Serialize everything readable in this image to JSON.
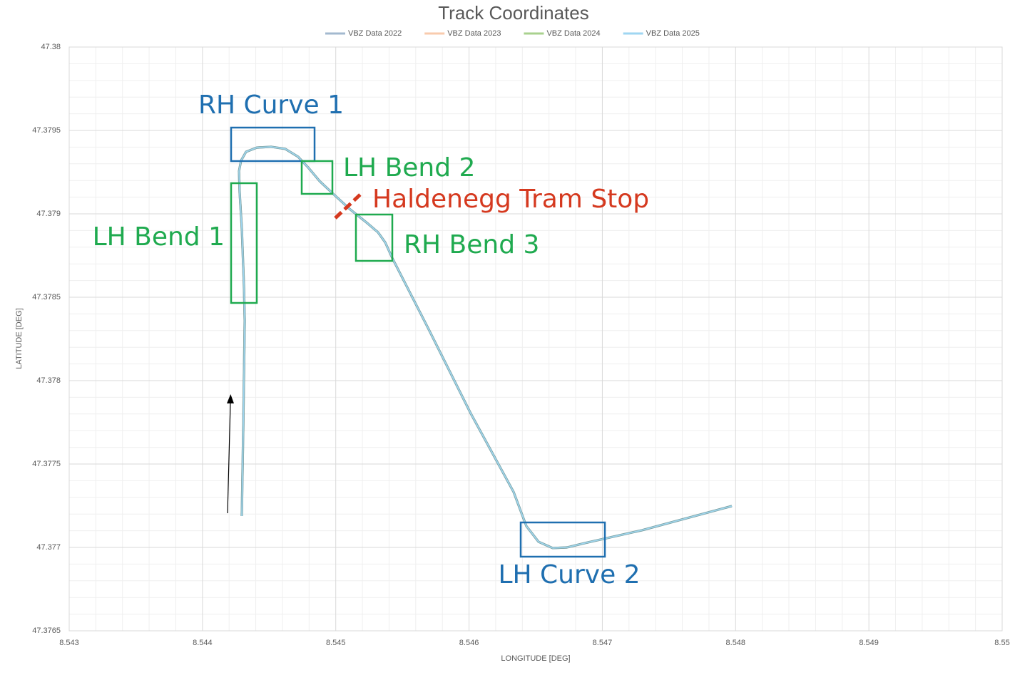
{
  "chart_data": {
    "type": "line",
    "title": "Track Coordinates",
    "x_label": "LONGITUDE [DEG]",
    "y_label": "LATITUDE [DEG]",
    "xlim": [
      8.543,
      8.55
    ],
    "ylim": [
      47.3765,
      47.38
    ],
    "xticks": [
      8.543,
      8.544,
      8.545,
      8.546,
      8.547,
      8.548,
      8.549,
      8.55
    ],
    "yticks": [
      47.3765,
      47.377,
      47.3775,
      47.378,
      47.3785,
      47.379,
      47.3795,
      47.38
    ],
    "grid": true,
    "minor_grid": true,
    "legend": "top",
    "x": [
      8.544295,
      8.544306,
      8.544317,
      8.544311,
      8.544295,
      8.544279,
      8.544274,
      8.54429,
      8.544327,
      8.544407,
      8.544515,
      8.544622,
      8.544718,
      8.544793,
      8.544878,
      8.544975,
      8.545103,
      8.545237,
      8.545317,
      8.545371,
      8.545424,
      8.545692,
      8.546013,
      8.546334,
      8.54643,
      8.546521,
      8.546628,
      8.546735,
      8.546869,
      8.547297,
      8.547972
    ],
    "series": [
      {
        "name": "VBZ Data 2022",
        "color": "#a3b9cf",
        "values": [
          47.377188,
          47.377718,
          47.378359,
          47.378573,
          47.378915,
          47.379128,
          47.379256,
          47.37932,
          47.379372,
          47.379397,
          47.379402,
          47.379389,
          47.379342,
          47.379278,
          47.379197,
          47.379124,
          47.37903,
          47.378944,
          47.378889,
          47.378829,
          47.378735,
          47.378316,
          47.377803,
          47.377333,
          47.377128,
          47.377034,
          47.376996,
          47.377,
          47.377026,
          47.377103,
          47.377248
        ]
      },
      {
        "name": "VBZ Data 2023",
        "color": "#f8cbad",
        "values": [
          47.377188,
          47.377718,
          47.378359,
          47.378573,
          47.378915,
          47.379128,
          47.379256,
          47.37932,
          47.379372,
          47.379397,
          47.379402,
          47.379389,
          47.379342,
          47.379278,
          47.379197,
          47.379124,
          47.37903,
          47.378944,
          47.378889,
          47.378829,
          47.378735,
          47.378316,
          47.377803,
          47.377333,
          47.377128,
          47.377034,
          47.376996,
          47.377,
          47.377026,
          47.377103,
          47.377248
        ]
      },
      {
        "name": "VBZ Data 2024",
        "color": "#a9d18e",
        "values": [
          47.377188,
          47.377718,
          47.378359,
          47.378573,
          47.378915,
          47.379128,
          47.379256,
          47.37932,
          47.379372,
          47.379397,
          47.379402,
          47.379389,
          47.379342,
          47.379278,
          47.379197,
          47.379124,
          47.37903,
          47.378944,
          47.378889,
          47.378829,
          47.378735,
          47.378316,
          47.377803,
          47.377333,
          47.377128,
          47.377034,
          47.376996,
          47.377,
          47.377026,
          47.377103,
          47.377248
        ]
      },
      {
        "name": "VBZ Data 2025",
        "color": "#9fd6f2",
        "values": [
          47.377188,
          47.377718,
          47.378359,
          47.378573,
          47.378915,
          47.379128,
          47.379256,
          47.37932,
          47.379372,
          47.379397,
          47.379402,
          47.379389,
          47.379342,
          47.379278,
          47.379197,
          47.379124,
          47.37903,
          47.378944,
          47.378889,
          47.378829,
          47.378735,
          47.378316,
          47.377803,
          47.377333,
          47.377128,
          47.377034,
          47.376996,
          47.377,
          47.377026,
          47.377103,
          47.377248
        ]
      }
    ],
    "annotations": [
      {
        "text": "RH Curve 1"
      },
      {
        "text": "LH Bend 2"
      },
      {
        "text": "Haldenegg Tram Stop"
      },
      {
        "text": "LH Bend 1"
      },
      {
        "text": "RH Bend 3"
      },
      {
        "text": "LH Curve 2"
      }
    ]
  }
}
